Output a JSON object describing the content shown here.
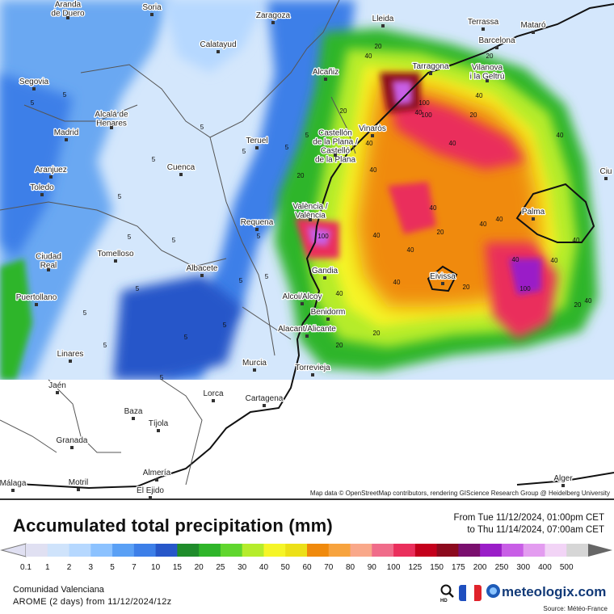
{
  "map": {
    "attribution": "Map data © OpenStreetMap contributors, rendering GIScience Research Group @ Heidelberg University",
    "cities": [
      {
        "name": "Aranda\nde Duero"
      },
      {
        "name": "Soria"
      },
      {
        "name": "Zaragoza"
      },
      {
        "name": "Lleida"
      },
      {
        "name": "Terrassa"
      },
      {
        "name": "Mataró"
      },
      {
        "name": "Barcelona"
      },
      {
        "name": "Calatayud"
      },
      {
        "name": "Tarragona"
      },
      {
        "name": "Vilanova\ni la Geltrú"
      },
      {
        "name": "Segovia"
      },
      {
        "name": "Alcañiz"
      },
      {
        "name": "Alcalá de\nHenares"
      },
      {
        "name": "Madrid"
      },
      {
        "name": "Teruel"
      },
      {
        "name": "Vinaròs"
      },
      {
        "name": "Castellón\nde la Plana /\nCastelló\nde la Plana"
      },
      {
        "name": "Aranjuez"
      },
      {
        "name": "Cuenca"
      },
      {
        "name": "Toledo"
      },
      {
        "name": "València /\nValència"
      },
      {
        "name": "Requena"
      },
      {
        "name": "Palma"
      },
      {
        "name": "Tomelloso"
      },
      {
        "name": "Ciudad\nReal"
      },
      {
        "name": "Albacete"
      },
      {
        "name": "Gandia"
      },
      {
        "name": "Eivissa"
      },
      {
        "name": "Puertollano"
      },
      {
        "name": "Alcoi/Alcoy"
      },
      {
        "name": "Benidorm"
      },
      {
        "name": "Alacant/Alicante"
      },
      {
        "name": "Linares"
      },
      {
        "name": "Murcia"
      },
      {
        "name": "Torrevieja"
      },
      {
        "name": "Jaén"
      },
      {
        "name": "Lorca"
      },
      {
        "name": "Cartagena"
      },
      {
        "name": "Baza"
      },
      {
        "name": "Tíjola"
      },
      {
        "name": "Granada"
      },
      {
        "name": "Almería"
      },
      {
        "name": "Motril"
      },
      {
        "name": "Málaga"
      },
      {
        "name": "El Ejido"
      },
      {
        "name": "Alger"
      },
      {
        "name": "Ciu"
      }
    ],
    "contour_labels": [
      "5",
      "5",
      "5",
      "5",
      "5",
      "5",
      "5",
      "5",
      "5",
      "5",
      "5",
      "5",
      "5",
      "5",
      "5",
      "5",
      "5",
      "5",
      "5",
      "20",
      "20",
      "20",
      "20",
      "20",
      "20",
      "20",
      "20",
      "20",
      "20",
      "40",
      "40",
      "40",
      "40",
      "40",
      "40",
      "40",
      "40",
      "40",
      "40",
      "40",
      "40",
      "40",
      "40",
      "40",
      "40",
      "40",
      "40",
      "100",
      "100",
      "100",
      "100"
    ]
  },
  "header": {
    "title": "Accumulated total precipitation (mm)",
    "from": "From Tue 11/12/2024, 01:00pm CET",
    "to": "to Thu 11/14/2024, 07:00am CET"
  },
  "legend": {
    "levels": [
      {
        "label": "0.1",
        "color": "#e0e0f2"
      },
      {
        "label": "1",
        "color": "#cfe3fb"
      },
      {
        "label": "2",
        "color": "#b6d8ff"
      },
      {
        "label": "3",
        "color": "#8cc2ff"
      },
      {
        "label": "5",
        "color": "#5aa0f5"
      },
      {
        "label": "7",
        "color": "#3d7fe8"
      },
      {
        "label": "10",
        "color": "#2757c9"
      },
      {
        "label": "15",
        "color": "#1f8c2b"
      },
      {
        "label": "20",
        "color": "#2fb52a"
      },
      {
        "label": "25",
        "color": "#60d62e"
      },
      {
        "label": "30",
        "color": "#b5ec2c"
      },
      {
        "label": "40",
        "color": "#f5f528"
      },
      {
        "label": "50",
        "color": "#ece018"
      },
      {
        "label": "60",
        "color": "#f08a0c"
      },
      {
        "label": "70",
        "color": "#f7a33e"
      },
      {
        "label": "80",
        "color": "#f9a88a"
      },
      {
        "label": "90",
        "color": "#f06c8a"
      },
      {
        "label": "100",
        "color": "#ea2f5c"
      },
      {
        "label": "125",
        "color": "#c4001c"
      },
      {
        "label": "150",
        "color": "#8c0a1e"
      },
      {
        "label": "175",
        "color": "#7a0f6e"
      },
      {
        "label": "200",
        "color": "#9a1ec8"
      },
      {
        "label": "250",
        "color": "#c85ee6"
      },
      {
        "label": "300",
        "color": "#e39cf0"
      },
      {
        "label": "400",
        "color": "#f2d4f6"
      },
      {
        "label": "500",
        "color": "#d6d6d6"
      }
    ]
  },
  "footer": {
    "region": "Comunidad Valenciana",
    "model": "AROME (2 days) from 11/12/2024/12z",
    "brand": "meteologix.com",
    "hd_icon": "hd-search-icon",
    "flag": "france-flag-icon",
    "source": "Source: Météo-France"
  }
}
